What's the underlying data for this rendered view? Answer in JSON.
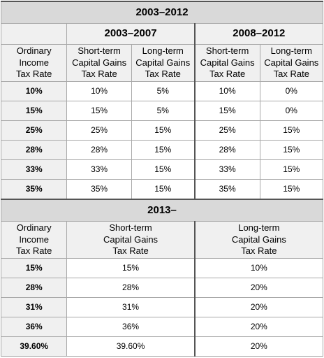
{
  "table_2003": {
    "title": "2003–2012",
    "period_a": "2003–2007",
    "period_b": "2008–2012",
    "col_headers": {
      "ordinary": [
        "Ordinary",
        "Income",
        "Tax Rate"
      ],
      "short": [
        "Short-term",
        "Capital Gains",
        "Tax Rate"
      ],
      "long": [
        "Long-term",
        "Capital Gains",
        "Tax Rate"
      ]
    },
    "rows": [
      {
        "rate": "10%",
        "a_short": "10%",
        "a_long": "5%",
        "b_short": "10%",
        "b_long": "0%"
      },
      {
        "rate": "15%",
        "a_short": "15%",
        "a_long": "5%",
        "b_short": "15%",
        "b_long": "0%"
      },
      {
        "rate": "25%",
        "a_short": "25%",
        "a_long": "15%",
        "b_short": "25%",
        "b_long": "15%"
      },
      {
        "rate": "28%",
        "a_short": "28%",
        "a_long": "15%",
        "b_short": "28%",
        "b_long": "15%"
      },
      {
        "rate": "33%",
        "a_short": "33%",
        "a_long": "15%",
        "b_short": "33%",
        "b_long": "15%"
      },
      {
        "rate": "35%",
        "a_short": "35%",
        "a_long": "15%",
        "b_short": "35%",
        "b_long": "15%"
      }
    ]
  },
  "table_2013": {
    "title": "2013–",
    "col_headers": {
      "ordinary": [
        "Ordinary",
        "Income",
        "Tax Rate"
      ],
      "short": [
        "Short-term",
        "Capital Gains",
        "Tax Rate"
      ],
      "long": [
        "Long-term",
        "Capital Gains",
        "Tax Rate"
      ]
    },
    "rows": [
      {
        "rate": "15%",
        "short": "15%",
        "long": "10%"
      },
      {
        "rate": "28%",
        "short": "28%",
        "long": "20%"
      },
      {
        "rate": "31%",
        "short": "31%",
        "long": "20%"
      },
      {
        "rate": "36%",
        "short": "36%",
        "long": "20%"
      },
      {
        "rate": "39.60%",
        "short": "39.60%",
        "long": "20%"
      }
    ]
  }
}
